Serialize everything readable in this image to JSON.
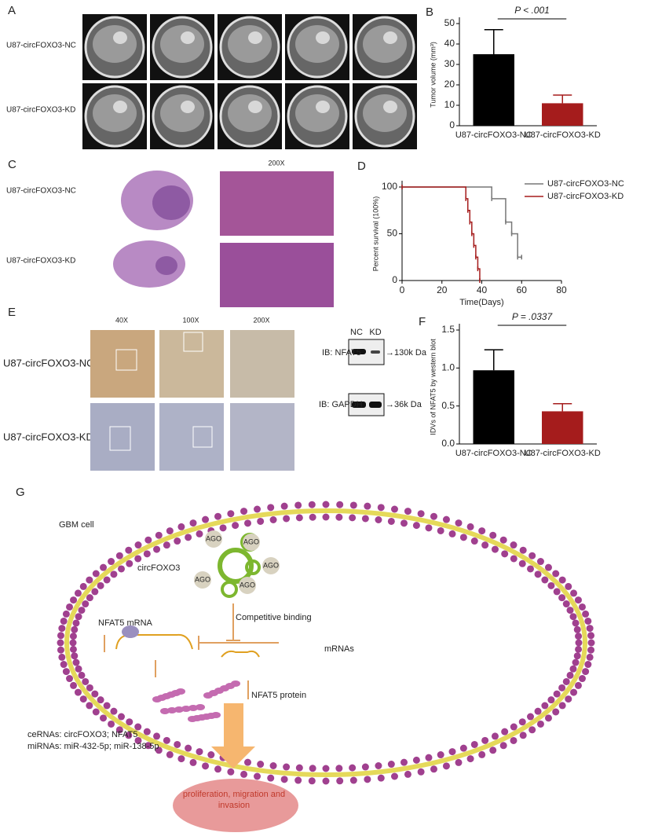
{
  "chart_data": [
    {
      "type": "bar",
      "panel": "B",
      "ylabel": "Tumor volume (mm³)",
      "annotation": "P < .001",
      "categories": [
        "U87-circFOXO3-NC",
        "U87-circFOXO3-KD"
      ],
      "values": [
        35,
        11
      ],
      "errors": [
        12,
        4
      ],
      "colors": [
        "#000000",
        "#a51c1c"
      ],
      "ylim": [
        0,
        50
      ],
      "yticks": [
        0,
        10,
        20,
        30,
        40,
        50
      ]
    },
    {
      "type": "survival",
      "panel": "D",
      "xlabel": "Time(Days)",
      "ylabel": "Percent survival (100%)",
      "series": [
        {
          "name": "U87-circFOXO3-NC",
          "color": "#777777",
          "x": [
            0,
            45,
            52,
            55,
            58,
            60
          ],
          "values": [
            100,
            87.5,
            62.5,
            50,
            25,
            25
          ]
        },
        {
          "name": "U87-circFOXO3-KD",
          "color": "#a51c1c",
          "x": [
            0,
            32,
            33,
            34,
            35,
            36,
            37,
            38,
            39
          ],
          "values": [
            100,
            87.5,
            75,
            62.5,
            50,
            37.5,
            25,
            12.5,
            0
          ]
        }
      ],
      "xlim": [
        0,
        80
      ],
      "xticks": [
        0,
        20,
        40,
        60,
        80
      ],
      "ylim": [
        0,
        100
      ],
      "yticks": [
        0,
        50,
        100
      ]
    },
    {
      "type": "bar",
      "panel": "F",
      "ylabel": "IDVs of NFAT5 by western blot",
      "annotation": "P = .0337",
      "categories": [
        "U87-circFOXO3-NC",
        "U87-circFOXO3-KD"
      ],
      "values": [
        0.97,
        0.43
      ],
      "errors": [
        0.27,
        0.1
      ],
      "colors": [
        "#000000",
        "#a51c1c"
      ],
      "ylim": [
        0,
        1.5
      ],
      "yticks": [
        {
          "value": 0,
          "label": "0.0"
        },
        0.5,
        {
          "value": 1,
          "label": "1.0"
        },
        1.5
      ]
    }
  ],
  "panel_a": {
    "label": "A",
    "rows": [
      "U87-circFOXO3-NC",
      "U87-circFOXO3-KD"
    ]
  },
  "panel_c": {
    "label": "C",
    "magnification": "200X",
    "rows": [
      "U87-circFOXO3-NC",
      "U87-circFOXO3-KD"
    ]
  },
  "panel_e": {
    "label": "E",
    "columns": [
      "40X",
      "100X",
      "200X"
    ],
    "rows": [
      "U87-circFOXO3-NC",
      "U87-circFOXO3-KD"
    ]
  },
  "panel_f_blot": {
    "lanes": [
      "NC",
      "KD"
    ],
    "rows": [
      "IB: NFAT5",
      "IB: GAPDH"
    ],
    "sizes": [
      "→130k Da",
      "→36k Da"
    ]
  },
  "panel_g": {
    "label": "G",
    "cell": "GBM cell",
    "circ": "circFOXO3",
    "ago": [
      "AGO",
      "AGO",
      "AGO",
      "AGO",
      "AGO"
    ],
    "competitive": "Competitive binding",
    "mrnas": "mRNAs",
    "nfat5_mrna": "NFAT5 mRNA",
    "nfat5_protein": "NFAT5 protein",
    "cernas": "ceRNAs: circFOXO3; NFAT5",
    "mirnas": "miRNAs: miR-432-5p; miR-138-5p",
    "outcome": "proliferation, migration and invasion"
  }
}
